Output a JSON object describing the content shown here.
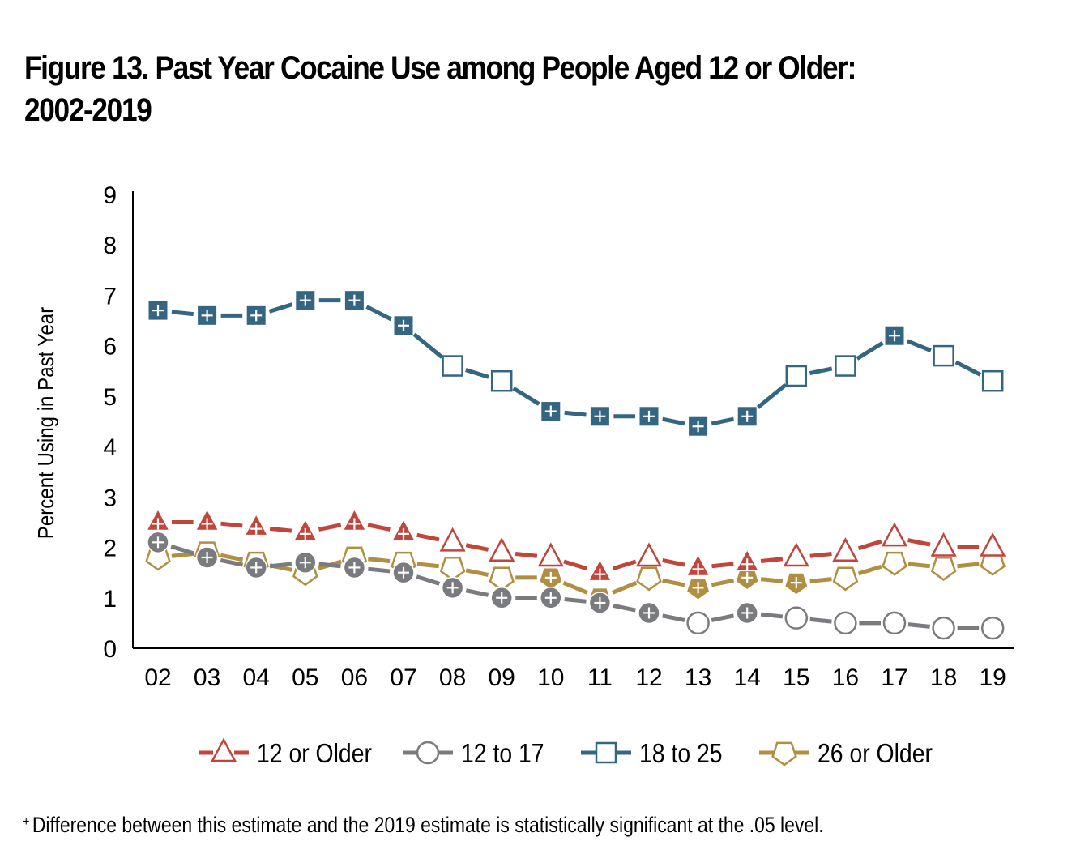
{
  "title_lines": [
    "Figure 13. Past Year Cocaine Use among People Aged 12 or Older:",
    "2002-2019"
  ],
  "footnote": {
    "marker": "+",
    "text": "Difference between this estimate and the 2019 estimate is statistically significant at the .05 level."
  },
  "chart_data": {
    "type": "line",
    "title": "Figure 13. Past Year Cocaine Use among People Aged 12 or Older: 2002-2019",
    "xlabel": "",
    "ylabel": "Percent Using in Past Year",
    "ylim": [
      0,
      9
    ],
    "yticks": [
      "0",
      "1",
      "2",
      "3",
      "4",
      "5",
      "6",
      "7",
      "8",
      "9"
    ],
    "categories": [
      "02",
      "03",
      "04",
      "05",
      "06",
      "07",
      "08",
      "09",
      "10",
      "11",
      "12",
      "13",
      "14",
      "15",
      "16",
      "17",
      "18",
      "19"
    ],
    "grid": false,
    "legend_position": "bottom",
    "series": [
      {
        "name": "12 or Older",
        "marker": "triangle",
        "color": "#c0463c",
        "values": [
          2.5,
          2.5,
          2.4,
          2.3,
          2.5,
          2.3,
          2.1,
          1.9,
          1.8,
          1.5,
          1.8,
          1.6,
          1.7,
          1.8,
          1.9,
          2.2,
          2.0,
          2.0
        ],
        "significant": [
          true,
          true,
          true,
          true,
          true,
          true,
          false,
          false,
          false,
          true,
          false,
          true,
          true,
          false,
          false,
          false,
          false,
          false
        ]
      },
      {
        "name": "12 to 17",
        "marker": "circle",
        "color": "#7a7b7e",
        "values": [
          2.1,
          1.8,
          1.6,
          1.7,
          1.6,
          1.5,
          1.2,
          1.0,
          1.0,
          0.9,
          0.7,
          0.5,
          0.7,
          0.6,
          0.5,
          0.5,
          0.4,
          0.4
        ],
        "significant": [
          true,
          true,
          true,
          true,
          true,
          true,
          true,
          true,
          true,
          true,
          true,
          false,
          true,
          false,
          false,
          false,
          false,
          false
        ]
      },
      {
        "name": "18 to 25",
        "marker": "square",
        "color": "#346681",
        "values": [
          6.7,
          6.6,
          6.6,
          6.9,
          6.9,
          6.4,
          5.6,
          5.3,
          4.7,
          4.6,
          4.6,
          4.4,
          4.6,
          5.4,
          5.6,
          6.2,
          5.8,
          5.3
        ],
        "significant": [
          true,
          true,
          true,
          true,
          true,
          true,
          false,
          false,
          true,
          true,
          true,
          true,
          true,
          false,
          false,
          true,
          false,
          false
        ]
      },
      {
        "name": "26 or Older",
        "marker": "pentagon",
        "color": "#b08f43",
        "values": [
          1.8,
          1.9,
          1.7,
          1.5,
          1.8,
          1.7,
          1.6,
          1.4,
          1.4,
          1.0,
          1.4,
          1.2,
          1.4,
          1.3,
          1.4,
          1.7,
          1.6,
          1.7
        ],
        "significant": [
          false,
          false,
          false,
          false,
          false,
          false,
          false,
          false,
          true,
          true,
          false,
          true,
          true,
          true,
          false,
          false,
          false,
          false
        ]
      }
    ]
  }
}
